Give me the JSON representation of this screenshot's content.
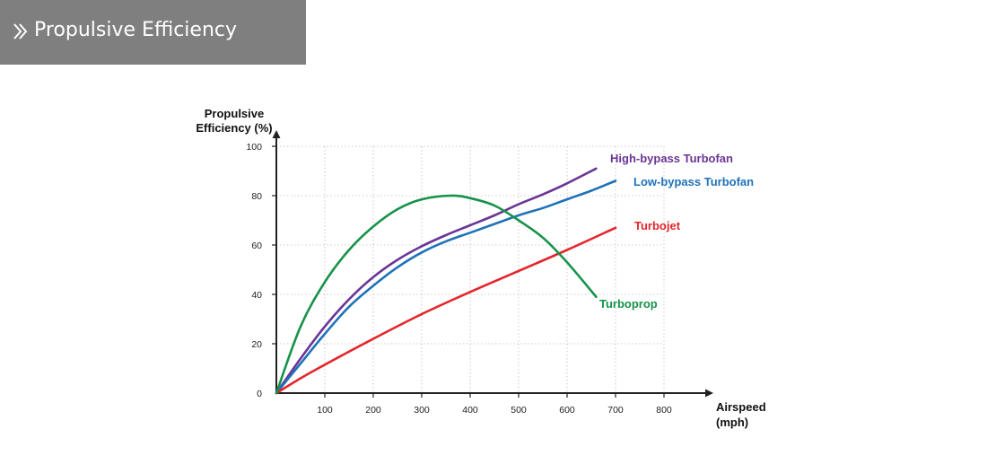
{
  "header": {
    "title": "Propulsive Efficiency",
    "icon": "double-chevron-right-icon",
    "background": "#7f7f7f"
  },
  "chart_data": {
    "type": "line",
    "xlabel": [
      "Airspeed",
      "(mph)"
    ],
    "ylabel": [
      "Propulsive",
      "Efficiency (%)"
    ],
    "xlim": [
      0,
      900
    ],
    "ylim": [
      0,
      100
    ],
    "xticks": [
      100,
      200,
      300,
      400,
      500,
      600,
      700,
      800
    ],
    "yticks": [
      0,
      20,
      40,
      60,
      80,
      100
    ],
    "grid": true,
    "legend": "inline-labels",
    "series": [
      {
        "name": "High-bypass Turbofan",
        "color": "#6a3596",
        "x": [
          0,
          50,
          100,
          150,
          200,
          250,
          300,
          350,
          400,
          450,
          500,
          550,
          600,
          660
        ],
        "y": [
          0,
          14,
          27,
          38,
          47,
          54,
          59.5,
          64,
          68,
          72,
          76.5,
          80.5,
          85,
          91
        ]
      },
      {
        "name": "Low-bypass Turbofan",
        "color": "#1f72b8",
        "x": [
          0,
          50,
          100,
          150,
          200,
          250,
          300,
          350,
          400,
          450,
          500,
          550,
          600,
          650,
          700
        ],
        "y": [
          0,
          12,
          24,
          35,
          43.5,
          51,
          57,
          61.5,
          65,
          68.5,
          72,
          75,
          78.5,
          82,
          86
        ]
      },
      {
        "name": "Turbojet",
        "color": "#e3262c",
        "x": [
          0,
          50,
          100,
          200,
          300,
          400,
          500,
          600,
          700
        ],
        "y": [
          0,
          6,
          11.5,
          22,
          32,
          41,
          49.5,
          58,
          67
        ]
      },
      {
        "name": "Turboprop",
        "color": "#16924a",
        "x": [
          0,
          50,
          100,
          150,
          200,
          250,
          300,
          360,
          400,
          450,
          500,
          550,
          600,
          660
        ],
        "y": [
          0,
          27,
          45,
          58,
          67.5,
          74.5,
          78.5,
          80,
          79,
          76,
          70,
          63,
          53,
          39
        ]
      }
    ]
  }
}
